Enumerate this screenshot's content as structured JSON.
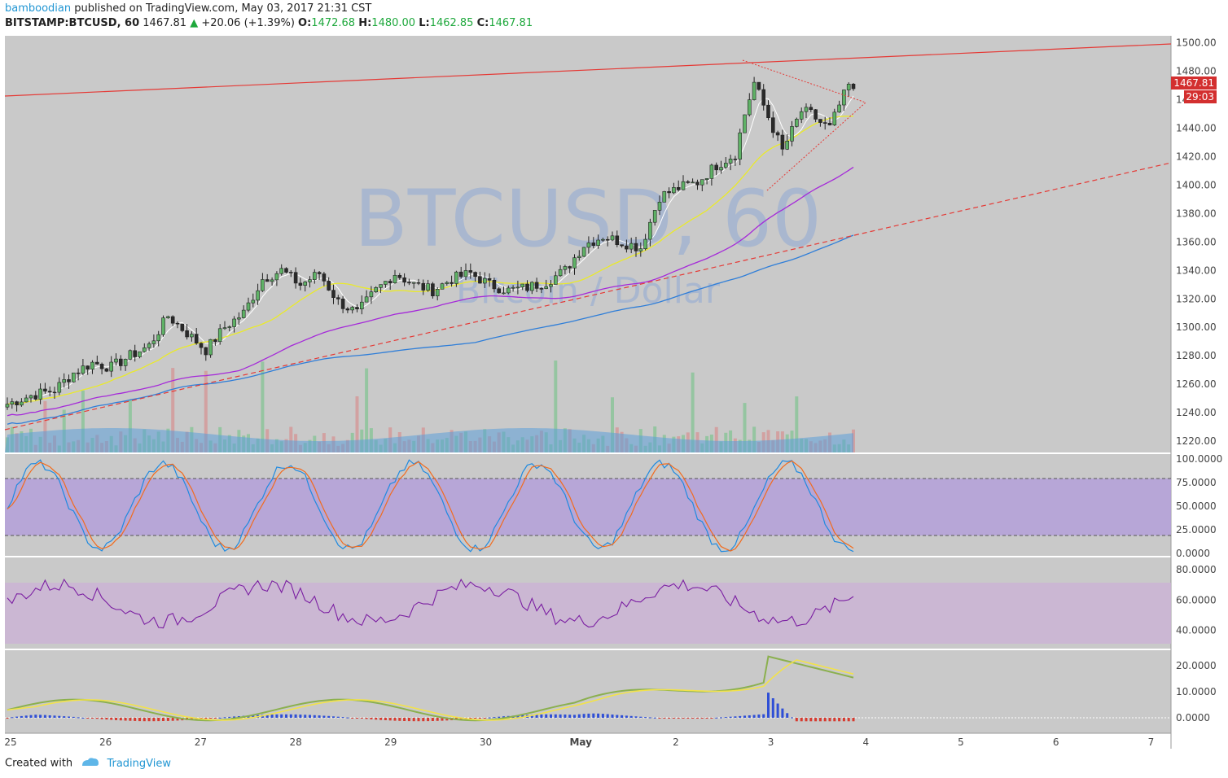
{
  "header": {
    "publisher": "bamboodian",
    "published_text": "published on TradingView.com, May 03, 2017 21:31 CST",
    "symbol": "BITSTAMP:BTCUSD, 60",
    "last": "1467.81",
    "change": "+20.06 (+1.39%)",
    "open_label": "O:",
    "open": "1472.68",
    "high_label": "H:",
    "high": "1480.00",
    "low_label": "L:",
    "low": "1462.85",
    "close_label": "C:",
    "close": "1467.81"
  },
  "watermark": {
    "title": "BTCUSD, 60",
    "subtitle": "Bitcoin / Dollar"
  },
  "price_axis": {
    "labels": [
      "1500.00",
      "1480.00",
      "1460.00",
      "1440.00",
      "1420.00",
      "1400.00",
      "1380.00",
      "1360.00",
      "1340.00",
      "1320.00",
      "1300.00",
      "1280.00",
      "1260.00",
      "1240.00",
      "1220.00"
    ],
    "last_price_badge": "1467.81",
    "countdown_badge": "29:03",
    "badge_color": "#d32f2f"
  },
  "stoch_axis": {
    "labels": [
      "100.0000",
      "75.0000",
      "50.0000",
      "25.0000",
      "0.0000"
    ]
  },
  "rsi_axis": {
    "labels": [
      "80.0000",
      "60.0000",
      "40.0000"
    ]
  },
  "macd_axis": {
    "labels": [
      "20.0000",
      "10.0000",
      "0.0000"
    ]
  },
  "time_axis": {
    "labels": [
      "25",
      "26",
      "27",
      "28",
      "29",
      "30",
      "May",
      "2",
      "3",
      "4",
      "5",
      "6",
      "7"
    ]
  },
  "footer": {
    "created_with": "Created with",
    "brand": "TradingView"
  },
  "chart_data": {
    "type": "candlestick",
    "symbol": "BITSTAMP:BTCUSD",
    "interval": "60",
    "ylim": [
      1212,
      1505
    ],
    "x_ticks": [
      "25",
      "26",
      "27",
      "28",
      "29",
      "30",
      "May",
      "2",
      "3",
      "4",
      "5",
      "6",
      "7"
    ],
    "close_anchors": [
      [
        0,
        1246
      ],
      [
        5,
        1252
      ],
      [
        10,
        1256
      ],
      [
        14,
        1268
      ],
      [
        18,
        1275
      ],
      [
        22,
        1272
      ],
      [
        26,
        1280
      ],
      [
        30,
        1287
      ],
      [
        34,
        1308
      ],
      [
        38,
        1296
      ],
      [
        42,
        1284
      ],
      [
        46,
        1300
      ],
      [
        50,
        1310
      ],
      [
        54,
        1334
      ],
      [
        58,
        1340
      ],
      [
        62,
        1330
      ],
      [
        66,
        1338
      ],
      [
        70,
        1318
      ],
      [
        74,
        1310
      ],
      [
        78,
        1326
      ],
      [
        82,
        1338
      ],
      [
        86,
        1330
      ],
      [
        90,
        1326
      ],
      [
        94,
        1334
      ],
      [
        98,
        1338
      ],
      [
        102,
        1330
      ],
      [
        106,
        1326
      ],
      [
        110,
        1328
      ],
      [
        114,
        1332
      ],
      [
        118,
        1340
      ],
      [
        122,
        1358
      ],
      [
        126,
        1364
      ],
      [
        130,
        1360
      ],
      [
        134,
        1356
      ],
      [
        138,
        1392
      ],
      [
        142,
        1398
      ],
      [
        146,
        1402
      ],
      [
        150,
        1414
      ],
      [
        154,
        1422
      ],
      [
        156,
        1450
      ],
      [
        158,
        1472
      ],
      [
        160,
        1456
      ],
      [
        162,
        1440
      ],
      [
        164,
        1424
      ],
      [
        166,
        1438
      ],
      [
        168,
        1452
      ],
      [
        170,
        1450
      ],
      [
        172,
        1444
      ],
      [
        174,
        1440
      ],
      [
        176,
        1456
      ],
      [
        178,
        1470
      ],
      [
        179,
        1467.81
      ]
    ],
    "stoch_levels": [
      80,
      20
    ],
    "rsi_band": [
      70,
      30
    ],
    "resistance_color": "#e53935",
    "ma_colors": {
      "ma_fast": "#ffffff",
      "ma_20": "#eaea2a",
      "ma_50": "#a52ad9",
      "ma_100": "#2f7ed8"
    }
  }
}
